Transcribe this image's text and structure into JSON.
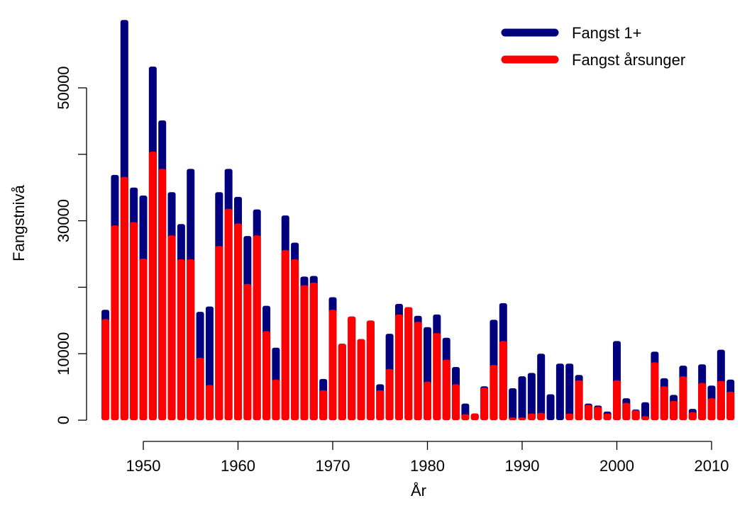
{
  "chart_data": {
    "type": "bar",
    "overlay": true,
    "x_label": "År",
    "y_label": "Fangstnivå",
    "x": [
      1946,
      1947,
      1948,
      1949,
      1950,
      1951,
      1952,
      1953,
      1954,
      1955,
      1956,
      1957,
      1958,
      1959,
      1960,
      1961,
      1962,
      1963,
      1964,
      1965,
      1966,
      1967,
      1968,
      1969,
      1970,
      1971,
      1972,
      1973,
      1974,
      1975,
      1976,
      1977,
      1978,
      1979,
      1980,
      1981,
      1982,
      1983,
      1984,
      1985,
      1986,
      1987,
      1988,
      1989,
      1990,
      1991,
      1992,
      1993,
      1994,
      1995,
      1996,
      1997,
      1998,
      1999,
      2000,
      2001,
      2002,
      2003,
      2004,
      2005,
      2006,
      2007,
      2008,
      2009,
      2010,
      2011,
      2012
    ],
    "series": [
      {
        "name": "Fangst 1+",
        "color": "#00007f",
        "values": [
          16600,
          36900,
          60200,
          35000,
          33800,
          53200,
          45100,
          34300,
          29500,
          37800,
          16300,
          17100,
          34300,
          37800,
          33600,
          27700,
          31700,
          17200,
          10900,
          30800,
          26700,
          21600,
          21700,
          6200,
          18500,
          11500,
          15600,
          12200,
          15000,
          5400,
          13000,
          17500,
          17000,
          15700,
          14000,
          15900,
          12400,
          8000,
          2500,
          1000,
          5100,
          15100,
          17600,
          4800,
          6600,
          7100,
          10000,
          3900,
          8500,
          8500,
          6800,
          2500,
          2200,
          1300,
          11900,
          3300,
          1600,
          2700,
          10300,
          6300,
          3800,
          8200,
          1700,
          8400,
          5200,
          10600,
          6100
        ]
      },
      {
        "name": "Fangst årsunger",
        "color": "#ff0000",
        "values": [
          15200,
          29300,
          36600,
          29800,
          24300,
          40400,
          37800,
          27800,
          24200,
          24200,
          9400,
          5300,
          26200,
          31800,
          29600,
          20500,
          27800,
          13400,
          6100,
          25600,
          24200,
          20300,
          20700,
          4500,
          16600,
          11500,
          15600,
          12200,
          15000,
          4500,
          7700,
          15900,
          17000,
          14800,
          5800,
          13100,
          9100,
          5400,
          900,
          1000,
          4900,
          8300,
          11900,
          400,
          400,
          1000,
          1100,
          0,
          0,
          1000,
          6000,
          2300,
          2000,
          1000,
          6000,
          2600,
          1500,
          600,
          8700,
          5100,
          2900,
          6600,
          1200,
          5600,
          3300,
          5900,
          4300
        ]
      }
    ],
    "xlim": [
      1944,
      2014
    ],
    "xticks": [
      1950,
      1960,
      1970,
      1980,
      1990,
      2000,
      2010
    ],
    "ylim": [
      -2000,
      62000
    ],
    "yticks": [
      0,
      10000,
      {
        "value": 20000,
        "label": null
      },
      30000,
      {
        "value": 40000,
        "label": null
      },
      50000
    ],
    "legend": "top-right"
  }
}
